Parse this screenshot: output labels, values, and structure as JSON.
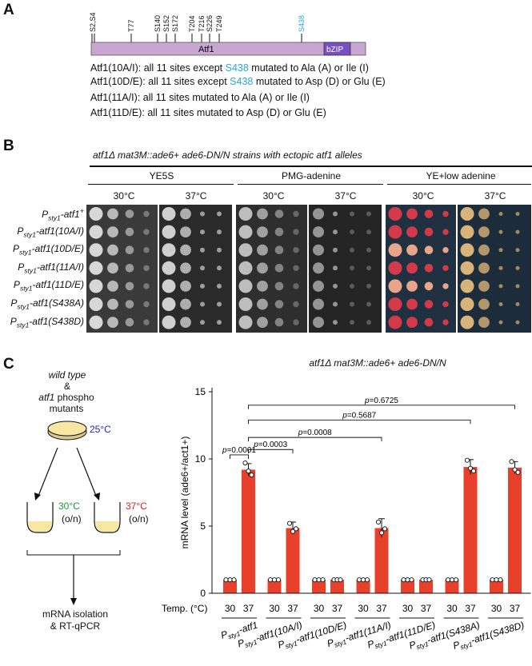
{
  "panel_a": {
    "letter": "A",
    "sites": [
      "S2,S4",
      "T77",
      "S140",
      "S152",
      "S172",
      "T204",
      "T216",
      "S226",
      "T249",
      "S438"
    ],
    "protein": "Atf1",
    "domain": "bZIP",
    "lines": [
      {
        "pre": "Atf1(10A/I): all 11 sites except ",
        "hl": "S438",
        "post": " mutated to Ala (A) or Ile (I)"
      },
      {
        "pre": "Atf1(10D/E): all 11 sites except ",
        "hl": "S438",
        "post": " mutated to Asp (D) or Glu (E)"
      },
      {
        "pre": "Atf1(11A/I): all 11 sites mutated to Ala (A) or Ile (I)",
        "hl": "",
        "post": ""
      },
      {
        "pre": "Atf1(11D/E): all 11 sites mutated to Asp (D) or Glu (E)",
        "hl": "",
        "post": ""
      }
    ]
  },
  "panel_b": {
    "letter": "B",
    "title": "atf1Δ mat3M::ade6+ ade6-DN/N strains with ectopic atf1 alleles",
    "conditions": [
      "YE5S",
      "PMG-adenine",
      "YE+low adenine"
    ],
    "temps": [
      "30°C",
      "37°C",
      "30°C",
      "37°C",
      "30°C",
      "37°C"
    ],
    "strains": [
      {
        "p": "P",
        "sub": "sty1",
        "rest": "-atf1",
        "sup": "+"
      },
      {
        "p": "P",
        "sub": "sty1",
        "rest": "-atf1(10A/I)",
        "sup": ""
      },
      {
        "p": "P",
        "sub": "sty1",
        "rest": "-atf1(10D/E)",
        "sup": ""
      },
      {
        "p": "P",
        "sub": "sty1",
        "rest": "-atf1(11A/I)",
        "sup": ""
      },
      {
        "p": "P",
        "sub": "sty1",
        "rest": "-atf1(11D/E)",
        "sup": ""
      },
      {
        "p": "P",
        "sub": "sty1",
        "rest": "-atf1(S438A)",
        "sup": ""
      },
      {
        "p": "P",
        "sub": "sty1",
        "rest": "-atf1(S438D)",
        "sup": ""
      }
    ]
  },
  "panel_c": {
    "letter": "C",
    "schematic": {
      "start_label_1": "wild type",
      "start_label_2": "&",
      "start_label_3": "atf1",
      "start_label_4": "phospho",
      "start_label_5": "mutants",
      "dish_temp": "25°C",
      "left_temp": "30°C",
      "right_temp": "37°C",
      "left_note": "(o/n)",
      "right_note": "(o/n)",
      "end_label_1": "mRNA isolation",
      "end_label_2": "& RT-qPCR"
    },
    "colors": {
      "bar": "#e8402a",
      "cyan": "#2aa7d6",
      "green": "#1a9a3a",
      "red": "#e02020",
      "blue": "#2020d0",
      "dish": "#f7e7a0"
    }
  },
  "chart_data": {
    "type": "bar",
    "title": "atf1Δ mat3M::ade6+ ade6-DN/N",
    "ylabel": "mRNA level (ade6+/act1+)",
    "xlabel": "Temp. (°C)",
    "ylim": [
      0,
      15
    ],
    "yticks": [
      0,
      5,
      10,
      15
    ],
    "groups": [
      "Psty1-atf1",
      "Psty1-atf1(10A/I)",
      "Psty1-atf1(10D/E)",
      "Psty1-atf1(11A/I)",
      "Psty1-atf1(11D/E)",
      "Psty1-atf1(S438A)",
      "Psty1-atf1(S438D)"
    ],
    "temps": [
      "30",
      "37"
    ],
    "values": [
      [
        1.0,
        9.2
      ],
      [
        1.0,
        4.85
      ],
      [
        1.0,
        1.0
      ],
      [
        1.0,
        4.85
      ],
      [
        1.0,
        1.0
      ],
      [
        1.0,
        9.4
      ],
      [
        1.0,
        9.35
      ]
    ],
    "errors": [
      [
        0.03,
        0.45
      ],
      [
        0.03,
        0.45
      ],
      [
        0.03,
        0.05
      ],
      [
        0.03,
        0.7
      ],
      [
        0.03,
        0.05
      ],
      [
        0.03,
        0.55
      ],
      [
        0.03,
        0.45
      ]
    ],
    "points": [
      [
        [
          1.0,
          1.0,
          1.0
        ],
        [
          9.7,
          9.1,
          8.8
        ]
      ],
      [
        [
          1.0,
          1.0,
          1.0
        ],
        [
          5.2,
          4.6,
          4.8
        ]
      ],
      [
        [
          1.0,
          1.0,
          1.0
        ],
        [
          1.0,
          1.0,
          1.0
        ]
      ],
      [
        [
          1.0,
          1.0,
          1.0
        ],
        [
          5.3,
          4.5,
          4.8
        ]
      ],
      [
        [
          1.0,
          1.0,
          1.0
        ],
        [
          1.0,
          1.0,
          1.0
        ]
      ],
      [
        [
          1.0,
          1.0,
          1.0
        ],
        [
          9.9,
          9.3,
          9.1
        ]
      ],
      [
        [
          1.0,
          1.0,
          1.0
        ],
        [
          9.8,
          9.2,
          9.0
        ]
      ]
    ],
    "comparisons": [
      {
        "from_group": 0,
        "to_group": 0,
        "label": "p=0.0001"
      },
      {
        "from_group": 0,
        "to_group": 1,
        "label": "p=0.0003"
      },
      {
        "from_group": 0,
        "to_group": 3,
        "label": "p=0.0008"
      },
      {
        "from_group": 0,
        "to_group": 5,
        "label": "p=0.5687"
      },
      {
        "from_group": 0,
        "to_group": 6,
        "label": "p=0.6725"
      }
    ]
  }
}
